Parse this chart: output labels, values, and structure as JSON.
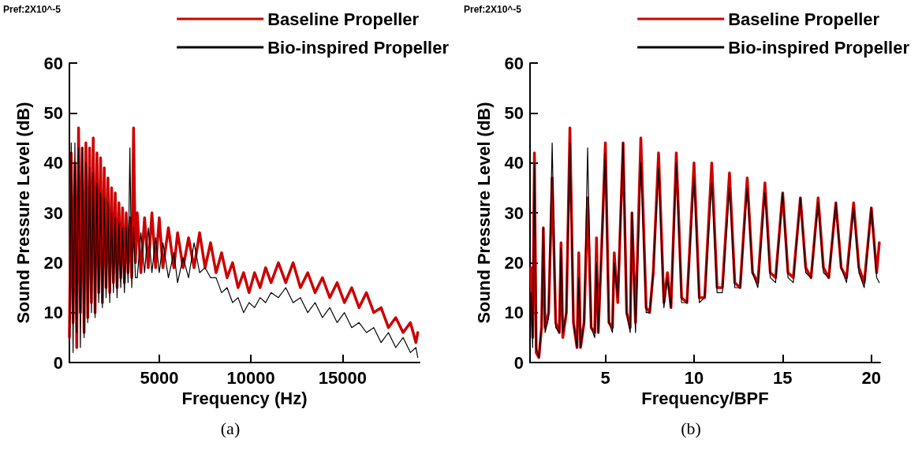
{
  "chart_data": [
    {
      "type": "line",
      "xlabel": "Frequency (Hz)",
      "ylabel": "Sound Pressure Level (dB)",
      "annotations": [
        "Pref:2X10^-5",
        "(a)"
      ],
      "xlim": [
        100,
        19200
      ],
      "xticks": [
        5000,
        10000,
        15000
      ],
      "ylim": [
        0,
        60
      ],
      "yticks": [
        0,
        10,
        20,
        30,
        40,
        50,
        60
      ],
      "legend": "top right",
      "grid": false,
      "marker": "none",
      "x": [
        100,
        200,
        300,
        400,
        500,
        600,
        700,
        800,
        900,
        1000,
        1100,
        1200,
        1300,
        1400,
        1500,
        1600,
        1700,
        1800,
        1900,
        2000,
        2100,
        2200,
        2300,
        2400,
        2500,
        2600,
        2700,
        2800,
        2900,
        3000,
        3100,
        3200,
        3300,
        3400,
        3500,
        3600,
        3700,
        3800,
        4000,
        4200,
        4400,
        4600,
        4800,
        5000,
        5200,
        5500,
        5800,
        6000,
        6300,
        6600,
        6900,
        7200,
        7500,
        7800,
        8100,
        8400,
        8700,
        9000,
        9300,
        9600,
        9900,
        10200,
        10500,
        10800,
        11100,
        11500,
        11900,
        12300,
        12700,
        13100,
        13500,
        13900,
        14300,
        14700,
        15100,
        15500,
        15900,
        16300,
        16700,
        17100,
        17500,
        17900,
        18300,
        18700,
        19000,
        19100
      ],
      "series": [
        {
          "name": "Baseline Propeller",
          "color": "#cc0000",
          "values": [
            5,
            42,
            8,
            40,
            3,
            47,
            10,
            43,
            6,
            44,
            9,
            43,
            12,
            45,
            10,
            42,
            14,
            41,
            12,
            39,
            15,
            37,
            14,
            35,
            16,
            34,
            15,
            32,
            17,
            31,
            16,
            30,
            18,
            29,
            17,
            47,
            20,
            30,
            18,
            29,
            19,
            30,
            19,
            29,
            19,
            27,
            19,
            26,
            19,
            25,
            19,
            26,
            19,
            24,
            18,
            22,
            17,
            20,
            15,
            18,
            14,
            18,
            15,
            19,
            16,
            20,
            16,
            20,
            15,
            18,
            14,
            17,
            13,
            16,
            12,
            15,
            11,
            14,
            10,
            11,
            7,
            9,
            6,
            8,
            4,
            6
          ]
        },
        {
          "name": "Bio-inspired Propeller",
          "color": "#000000",
          "values": [
            1,
            44,
            2,
            44,
            6,
            43,
            3,
            43,
            5,
            40,
            8,
            39,
            10,
            38,
            9,
            36,
            12,
            34,
            11,
            33,
            13,
            32,
            12,
            30,
            14,
            29,
            13,
            28,
            15,
            27,
            14,
            27,
            16,
            43,
            15,
            27,
            17,
            17,
            26,
            18,
            27,
            18,
            25,
            18,
            24,
            17,
            22,
            16,
            21,
            17,
            24,
            18,
            19,
            17,
            17,
            14,
            15,
            12,
            13,
            10,
            12,
            11,
            13,
            12,
            14,
            13,
            15,
            12,
            13,
            10,
            12,
            9,
            11,
            8,
            10,
            7,
            8,
            6,
            7,
            4,
            6,
            3,
            5,
            2,
            3,
            1
          ]
        }
      ]
    },
    {
      "type": "line",
      "xlabel": "Frequency/BPF",
      "ylabel": "Sound Pressure Level (dB)",
      "annotations": [
        "Pref:2X10^-5",
        "(b)"
      ],
      "xlim": [
        0.75,
        20.5
      ],
      "xticks": [
        5,
        10,
        15,
        20
      ],
      "ylim": [
        0,
        60
      ],
      "yticks": [
        0,
        10,
        20,
        30,
        40,
        50,
        60
      ],
      "legend": "top right",
      "grid": false,
      "marker": "none",
      "x": [
        0.8,
        0.9,
        1.0,
        1.1,
        1.25,
        1.4,
        1.5,
        1.6,
        1.8,
        2.0,
        2.2,
        2.4,
        2.5,
        2.6,
        2.8,
        3.0,
        3.2,
        3.4,
        3.5,
        3.6,
        3.8,
        4.0,
        4.2,
        4.4,
        4.5,
        4.6,
        4.8,
        5.0,
        5.2,
        5.4,
        5.5,
        5.7,
        6.0,
        6.2,
        6.4,
        6.5,
        6.7,
        7.0,
        7.3,
        7.5,
        7.7,
        8.0,
        8.3,
        8.5,
        8.7,
        9.0,
        9.3,
        9.6,
        10.0,
        10.3,
        10.6,
        11.0,
        11.3,
        11.6,
        12.0,
        12.3,
        12.6,
        13.0,
        13.3,
        13.6,
        14.0,
        14.3,
        14.6,
        15.0,
        15.3,
        15.6,
        16.0,
        16.3,
        16.6,
        17.0,
        17.3,
        17.6,
        18.0,
        18.3,
        18.6,
        19.0,
        19.3,
        19.6,
        20.0,
        20.3,
        20.45
      ],
      "series": [
        {
          "name": "Baseline Propeller",
          "color": "#cc0000",
          "values": [
            19,
            5,
            42,
            2,
            1,
            7,
            27,
            7,
            10,
            37,
            8,
            6,
            24,
            5,
            10,
            47,
            8,
            3,
            22,
            3,
            8,
            33,
            7,
            6,
            25,
            6,
            24,
            44,
            8,
            7,
            22,
            12,
            44,
            10,
            7,
            30,
            8,
            45,
            11,
            10,
            18,
            42,
            12,
            18,
            11,
            42,
            13,
            12,
            40,
            13,
            13,
            40,
            15,
            15,
            38,
            16,
            15,
            37,
            18,
            16,
            36,
            18,
            17,
            34,
            18,
            17,
            33,
            19,
            17,
            33,
            19,
            17,
            32,
            19,
            17,
            32,
            19,
            16,
            31,
            18,
            24
          ]
        },
        {
          "name": "Bio-inspired Propeller",
          "color": "#000000",
          "values": [
            14,
            3,
            40,
            3,
            1,
            7,
            27,
            6,
            9,
            44,
            7,
            6,
            23,
            6,
            10,
            44,
            8,
            3,
            17,
            3,
            8,
            43,
            7,
            5,
            20,
            6,
            24,
            42,
            8,
            6,
            20,
            13,
            44,
            10,
            6,
            30,
            6,
            40,
            10,
            10,
            18,
            39,
            11,
            17,
            11,
            40,
            12,
            12,
            37,
            12,
            13,
            36,
            14,
            14,
            35,
            15,
            15,
            35,
            18,
            15,
            34,
            17,
            16,
            34,
            17,
            16,
            33,
            18,
            17,
            32,
            18,
            17,
            32,
            19,
            16,
            31,
            18,
            15,
            31,
            17,
            16
          ]
        }
      ]
    }
  ]
}
